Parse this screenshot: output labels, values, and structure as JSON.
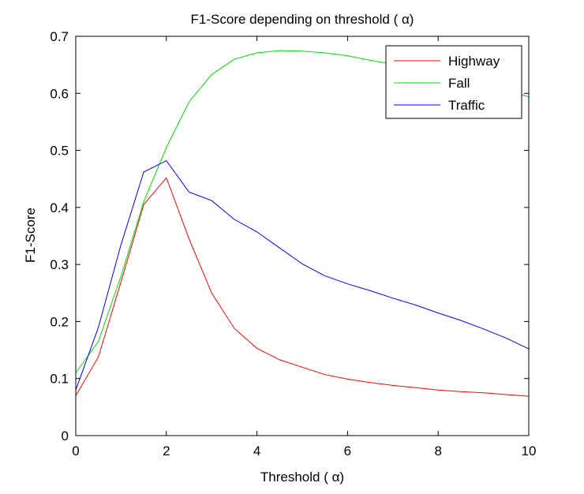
{
  "chart_data": {
    "type": "line",
    "title": "F1-Score depending on threshold (  α)",
    "xlabel": "Threshold ( α)",
    "ylabel": "F1-Score",
    "xlim": [
      0,
      10
    ],
    "ylim": [
      0,
      0.7
    ],
    "xticks": [
      0,
      2,
      4,
      6,
      8,
      10
    ],
    "yticks": [
      0,
      0.1,
      0.2,
      0.3,
      0.4,
      0.5,
      0.6,
      0.7
    ],
    "xtick_labels": [
      "0",
      "2",
      "4",
      "6",
      "8",
      "10"
    ],
    "ytick_labels": [
      "0",
      "0.1",
      "0.2",
      "0.3",
      "0.4",
      "0.5",
      "0.6",
      "0.7"
    ],
    "grid": false,
    "legend_position": "top-right",
    "series": [
      {
        "name": "Highway",
        "color": "#ff0000",
        "x": [
          0,
          0.5,
          1,
          1.5,
          2,
          2.5,
          3,
          3.5,
          4,
          4.5,
          5,
          5.5,
          6,
          6.5,
          7,
          7.5,
          8,
          8.5,
          9,
          9.5,
          10
        ],
        "y": [
          0.07,
          0.138,
          0.27,
          0.405,
          0.452,
          0.345,
          0.25,
          0.188,
          0.153,
          0.133,
          0.12,
          0.107,
          0.099,
          0.093,
          0.088,
          0.084,
          0.08,
          0.077,
          0.075,
          0.072,
          0.069
        ]
      },
      {
        "name": "Fall",
        "color": "#00dd00",
        "x": [
          0,
          0.5,
          1,
          1.5,
          2,
          2.5,
          3,
          3.5,
          4,
          4.5,
          5,
          5.5,
          6,
          6.5,
          7,
          7.5,
          8,
          8.5,
          9,
          9.5,
          10
        ],
        "y": [
          0.11,
          0.165,
          0.28,
          0.41,
          0.505,
          0.585,
          0.633,
          0.66,
          0.671,
          0.675,
          0.674,
          0.671,
          0.666,
          0.658,
          0.651,
          0.643,
          0.635,
          0.625,
          0.616,
          0.606,
          0.594
        ]
      },
      {
        "name": "Traffic",
        "color": "#0000ff",
        "x": [
          0,
          0.5,
          1,
          1.5,
          2,
          2.5,
          3,
          3.5,
          4,
          4.5,
          5,
          5.5,
          6,
          6.5,
          7,
          7.5,
          8,
          8.5,
          9,
          9.5,
          10
        ],
        "y": [
          0.08,
          0.19,
          0.335,
          0.462,
          0.482,
          0.427,
          0.412,
          0.379,
          0.357,
          0.329,
          0.301,
          0.28,
          0.266,
          0.254,
          0.241,
          0.229,
          0.215,
          0.202,
          0.187,
          0.171,
          0.152
        ]
      }
    ]
  }
}
